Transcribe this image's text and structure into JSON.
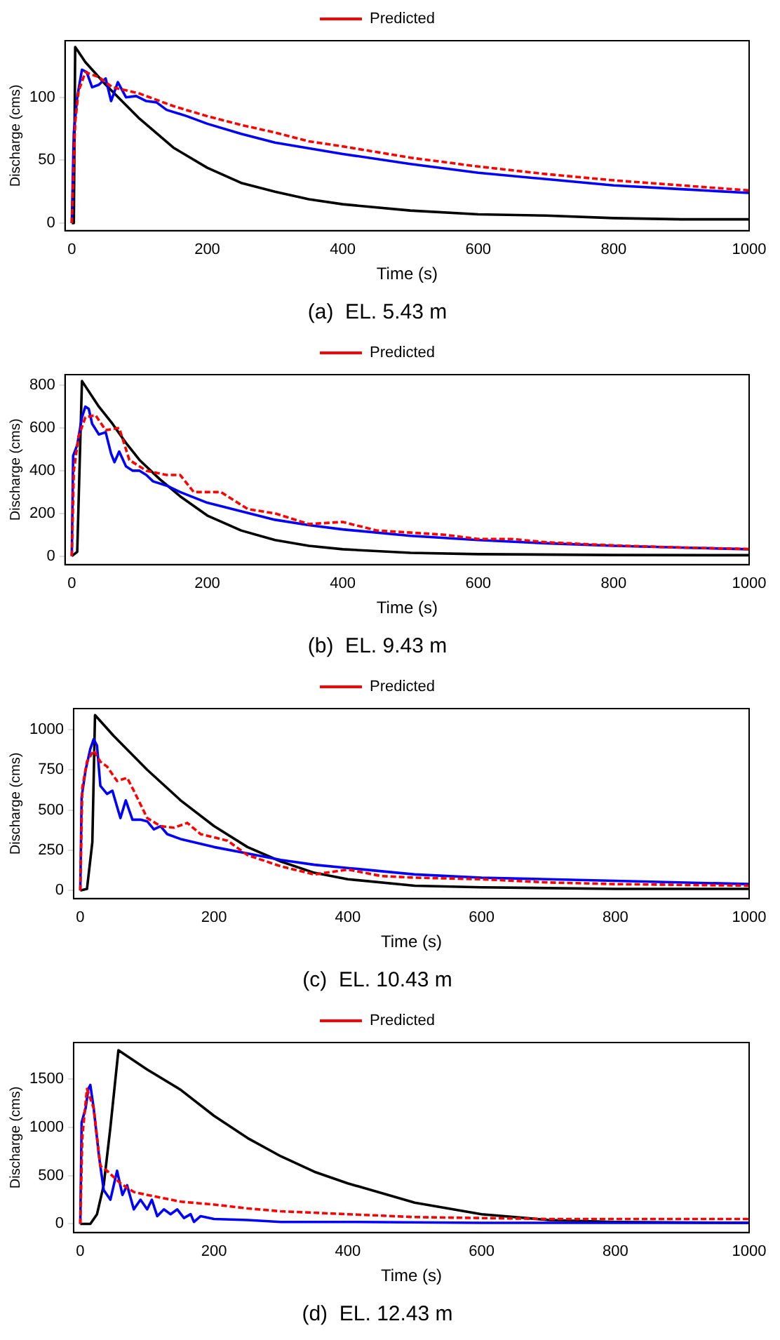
{
  "chart_data": [
    {
      "type": "line",
      "title": "(a)  EL. 5.43 m",
      "xlabel": "Time (s)",
      "ylabel": "Discharge (cms)",
      "xlim": [
        -10,
        1000
      ],
      "xticks": [
        0,
        200,
        400,
        600,
        800,
        1000
      ],
      "ylim": [
        -6,
        145
      ],
      "yticks": [
        0,
        50,
        100
      ],
      "legend": "top",
      "grid": false,
      "series": [
        {
          "color": "#000000",
          "line_style": "solid",
          "x": [
            0,
            3,
            5,
            20,
            50,
            100,
            150,
            200,
            250,
            300,
            350,
            400,
            500,
            600,
            700,
            800,
            900,
            1000
          ],
          "values": [
            0,
            0,
            140,
            128,
            110,
            83,
            60,
            44,
            32,
            25,
            19,
            15,
            10,
            7,
            6,
            4,
            3,
            3
          ]
        },
        {
          "color": "#0000ff",
          "line_style": "solid",
          "x": [
            0,
            3,
            8,
            15,
            22,
            30,
            40,
            50,
            58,
            68,
            80,
            95,
            110,
            125,
            140,
            170,
            200,
            250,
            300,
            400,
            500,
            600,
            700,
            800,
            900,
            1000
          ],
          "values": [
            0,
            72,
            100,
            122,
            120,
            108,
            110,
            115,
            97,
            112,
            100,
            101,
            97,
            96,
            90,
            85,
            79,
            71,
            64,
            55,
            47,
            40,
            35,
            30,
            27,
            24
          ]
        },
        {
          "name": "Predicted",
          "color": "#ff0000",
          "line_style": "dashed",
          "x": [
            0,
            5,
            10,
            20,
            40,
            60,
            100,
            150,
            200,
            250,
            300,
            350,
            400,
            500,
            600,
            700,
            800,
            900,
            1000
          ],
          "values": [
            0,
            80,
            105,
            120,
            116,
            108,
            103,
            93,
            85,
            78,
            72,
            65,
            61,
            52,
            45,
            39,
            34,
            30,
            26
          ]
        }
      ]
    },
    {
      "type": "line",
      "title": "(b)  EL. 9.43 m",
      "xlabel": "Time (s)",
      "ylabel": "Discharge (cms)",
      "xlim": [
        -10,
        1000
      ],
      "xticks": [
        0,
        200,
        400,
        600,
        800,
        1000
      ],
      "ylim": [
        -40,
        850
      ],
      "yticks": [
        0,
        200,
        400,
        600,
        800
      ],
      "legend": "top",
      "grid": false,
      "series": [
        {
          "color": "#000000",
          "line_style": "solid",
          "x": [
            0,
            8,
            15,
            40,
            60,
            80,
            100,
            130,
            160,
            200,
            250,
            300,
            350,
            400,
            500,
            600,
            800,
            1000
          ],
          "values": [
            0,
            20,
            820,
            700,
            620,
            530,
            450,
            360,
            280,
            190,
            120,
            75,
            48,
            32,
            15,
            9,
            5,
            4
          ]
        },
        {
          "color": "#0000ff",
          "line_style": "solid",
          "x": [
            0,
            2,
            8,
            15,
            20,
            25,
            30,
            40,
            50,
            58,
            63,
            70,
            80,
            90,
            100,
            110,
            120,
            140,
            160,
            200,
            250,
            300,
            350,
            400,
            500,
            600,
            700,
            800,
            900,
            1000
          ],
          "values": [
            0,
            470,
            520,
            650,
            700,
            690,
            620,
            570,
            580,
            480,
            440,
            490,
            420,
            400,
            400,
            380,
            350,
            330,
            300,
            250,
            210,
            170,
            145,
            125,
            95,
            75,
            60,
            48,
            40,
            32
          ]
        },
        {
          "name": "Predicted",
          "color": "#ff0000",
          "line_style": "dashed",
          "x": [
            0,
            3,
            10,
            20,
            35,
            50,
            70,
            85,
            110,
            140,
            160,
            180,
            220,
            260,
            300,
            350,
            400,
            450,
            500,
            550,
            600,
            650,
            700,
            800,
            900,
            1000
          ],
          "values": [
            0,
            400,
            560,
            650,
            660,
            590,
            600,
            450,
            400,
            380,
            380,
            300,
            300,
            220,
            200,
            150,
            160,
            120,
            110,
            100,
            80,
            80,
            65,
            50,
            40,
            33
          ]
        }
      ]
    },
    {
      "type": "line",
      "title": "(c)  EL. 10.43 m",
      "xlabel": "Time (s)",
      "ylabel": "Discharge (cms)",
      "xlim": [
        -10,
        1000
      ],
      "xticks": [
        0,
        200,
        400,
        600,
        800,
        1000
      ],
      "ylim": [
        -50,
        1130
      ],
      "yticks": [
        0,
        250,
        500,
        750,
        1000
      ],
      "legend": "top",
      "grid": false,
      "series": [
        {
          "color": "#000000",
          "line_style": "solid",
          "x": [
            0,
            10,
            18,
            22,
            50,
            100,
            150,
            200,
            250,
            300,
            350,
            400,
            500,
            600,
            800,
            1000
          ],
          "values": [
            0,
            10,
            300,
            1090,
            960,
            750,
            560,
            400,
            270,
            180,
            110,
            70,
            30,
            20,
            10,
            10
          ]
        },
        {
          "color": "#0000ff",
          "line_style": "solid",
          "x": [
            0,
            2,
            8,
            15,
            20,
            25,
            30,
            40,
            48,
            55,
            60,
            68,
            78,
            90,
            100,
            110,
            120,
            130,
            150,
            200,
            250,
            300,
            350,
            400,
            500,
            600,
            700,
            800,
            1000
          ],
          "values": [
            0,
            580,
            750,
            880,
            940,
            900,
            650,
            600,
            620,
            520,
            450,
            560,
            440,
            440,
            430,
            380,
            400,
            350,
            320,
            270,
            230,
            190,
            160,
            140,
            100,
            80,
            70,
            60,
            40
          ]
        },
        {
          "name": "Predicted",
          "color": "#ff0000",
          "line_style": "dashed",
          "x": [
            0,
            3,
            10,
            20,
            30,
            40,
            55,
            70,
            80,
            100,
            120,
            140,
            160,
            180,
            220,
            250,
            300,
            350,
            400,
            450,
            500,
            600,
            700,
            800,
            1000
          ],
          "values": [
            0,
            640,
            800,
            870,
            800,
            770,
            680,
            700,
            620,
            450,
            400,
            390,
            420,
            350,
            310,
            220,
            150,
            100,
            130,
            90,
            80,
            70,
            50,
            40,
            30
          ]
        }
      ]
    },
    {
      "type": "line",
      "title": "(d)  EL. 12.43 m",
      "xlabel": "Time (s)",
      "ylabel": "Discharge (cms)",
      "xlim": [
        -10,
        1000
      ],
      "xticks": [
        0,
        200,
        400,
        600,
        800,
        1000
      ],
      "ylim": [
        -90,
        1880
      ],
      "yticks": [
        0,
        500,
        1000,
        1500
      ],
      "legend": "top",
      "grid": false,
      "series": [
        {
          "color": "#000000",
          "line_style": "solid",
          "x": [
            0,
            15,
            25,
            35,
            45,
            57,
            100,
            150,
            200,
            250,
            300,
            350,
            400,
            500,
            600,
            700,
            800,
            1000
          ],
          "values": [
            0,
            0,
            100,
            400,
            1000,
            1800,
            1600,
            1390,
            1120,
            890,
            700,
            540,
            420,
            220,
            100,
            40,
            20,
            10
          ]
        },
        {
          "color": "#0000ff",
          "line_style": "solid",
          "x": [
            0,
            2,
            8,
            12,
            15,
            20,
            28,
            35,
            45,
            55,
            63,
            70,
            80,
            90,
            100,
            107,
            115,
            125,
            135,
            145,
            155,
            165,
            170,
            180,
            200,
            250,
            300,
            400,
            600,
            1000
          ],
          "values": [
            0,
            1050,
            1200,
            1400,
            1440,
            1200,
            700,
            350,
            250,
            550,
            300,
            400,
            150,
            250,
            150,
            250,
            80,
            150,
            100,
            150,
            60,
            100,
            20,
            80,
            50,
            40,
            20,
            20,
            10,
            10
          ]
        },
        {
          "name": "Predicted",
          "color": "#ff0000",
          "line_style": "dashed",
          "x": [
            0,
            3,
            10,
            20,
            30,
            40,
            60,
            80,
            100,
            150,
            200,
            250,
            300,
            400,
            500,
            600,
            700,
            800,
            1000
          ],
          "values": [
            0,
            900,
            1400,
            1200,
            600,
            550,
            420,
            330,
            300,
            230,
            200,
            160,
            130,
            100,
            70,
            60,
            50,
            50,
            50
          ]
        }
      ]
    }
  ]
}
